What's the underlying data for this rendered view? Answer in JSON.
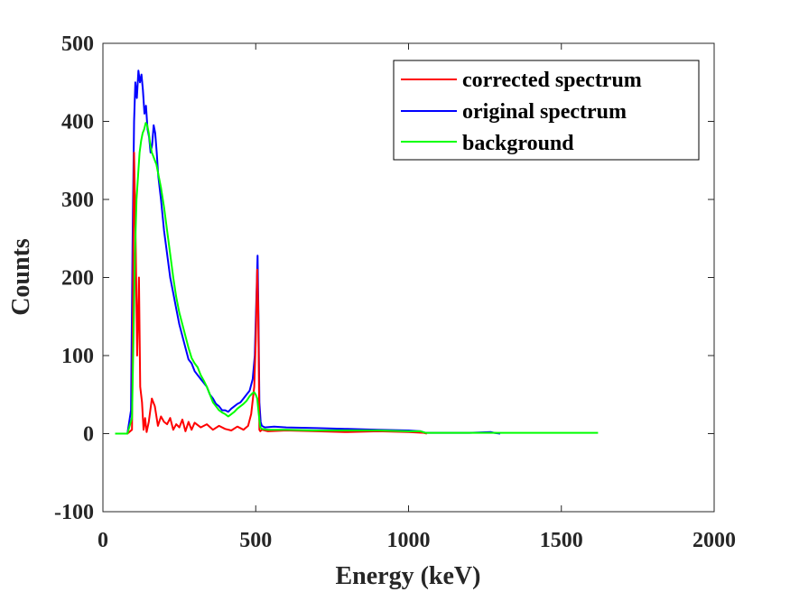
{
  "chart_data": {
    "type": "line",
    "title": "",
    "xlabel": "Energy (keV)",
    "ylabel": "Counts",
    "xlim": [
      0,
      2000
    ],
    "ylim": [
      -100,
      500
    ],
    "xticks": [
      0,
      500,
      1000,
      1500,
      2000
    ],
    "yticks": [
      -100,
      0,
      100,
      200,
      300,
      400,
      500
    ],
    "xtick_labels": [
      "0",
      "500",
      "1000",
      "1500",
      "2000"
    ],
    "ytick_labels": [
      "-100",
      "0",
      "100",
      "200",
      "300",
      "400",
      "500"
    ],
    "grid": false,
    "legend_position": "top-right",
    "series": [
      {
        "name": "corrected spectrum",
        "color": "#ff0000",
        "x": [
          40,
          80,
          95,
          102,
          107,
          112,
          118,
          122,
          128,
          133,
          138,
          143,
          150,
          160,
          170,
          180,
          190,
          200,
          210,
          220,
          230,
          240,
          250,
          260,
          270,
          280,
          290,
          300,
          320,
          340,
          360,
          380,
          400,
          420,
          440,
          460,
          475,
          485,
          495,
          500,
          505,
          508,
          512,
          515,
          520,
          540,
          600,
          700,
          800,
          900,
          1000,
          1050,
          1060
        ],
        "y": [
          0,
          0,
          5,
          360,
          250,
          100,
          200,
          60,
          40,
          5,
          20,
          2,
          15,
          45,
          35,
          10,
          22,
          15,
          12,
          20,
          5,
          12,
          8,
          18,
          3,
          15,
          5,
          14,
          8,
          12,
          5,
          10,
          6,
          4,
          9,
          5,
          10,
          25,
          60,
          120,
          210,
          160,
          5,
          3,
          5,
          3,
          4,
          3,
          2,
          3,
          2,
          1,
          0
        ]
      },
      {
        "name": "original spectrum",
        "color": "#0000ff",
        "x": [
          40,
          80,
          92,
          97,
          102,
          106,
          111,
          116,
          121,
          126,
          131,
          136,
          141,
          146,
          151,
          156,
          161,
          166,
          171,
          176,
          181,
          190,
          200,
          210,
          220,
          230,
          240,
          250,
          260,
          270,
          280,
          290,
          300,
          310,
          320,
          330,
          340,
          350,
          360,
          370,
          380,
          390,
          400,
          410,
          420,
          430,
          440,
          450,
          460,
          470,
          480,
          490,
          497,
          502,
          506,
          509,
          512,
          516,
          520,
          530,
          560,
          600,
          700,
          800,
          900,
          1000,
          1040,
          1055,
          1100,
          1200,
          1270,
          1280,
          1300
        ],
        "y": [
          0,
          0,
          30,
          240,
          400,
          450,
          430,
          465,
          450,
          460,
          440,
          410,
          420,
          390,
          380,
          360,
          370,
          395,
          385,
          360,
          330,
          300,
          260,
          230,
          200,
          180,
          160,
          140,
          125,
          110,
          95,
          90,
          80,
          75,
          70,
          65,
          60,
          50,
          45,
          38,
          35,
          30,
          30,
          28,
          32,
          35,
          38,
          40,
          45,
          50,
          55,
          70,
          100,
          170,
          228,
          150,
          40,
          15,
          10,
          8,
          9,
          8,
          7,
          6,
          5,
          4,
          3,
          1,
          1,
          1,
          2,
          1,
          0
        ]
      },
      {
        "name": "background",
        "color": "#00ff00",
        "x": [
          40,
          80,
          95,
          100,
          105,
          110,
          115,
          120,
          125,
          130,
          135,
          140,
          145,
          150,
          155,
          160,
          165,
          170,
          175,
          180,
          190,
          200,
          210,
          220,
          230,
          240,
          250,
          260,
          270,
          280,
          290,
          300,
          310,
          320,
          330,
          340,
          350,
          360,
          370,
          380,
          390,
          400,
          410,
          420,
          430,
          440,
          450,
          460,
          470,
          480,
          490,
          495,
          500,
          505,
          510,
          515,
          520,
          540,
          600,
          700,
          800,
          900,
          1000,
          1040,
          1055,
          1100,
          1200,
          1300,
          1400,
          1500,
          1620
        ],
        "y": [
          0,
          0,
          20,
          120,
          230,
          300,
          330,
          360,
          375,
          385,
          390,
          398,
          395,
          385,
          370,
          360,
          355,
          350,
          345,
          335,
          315,
          290,
          260,
          230,
          200,
          175,
          155,
          140,
          125,
          110,
          97,
          90,
          85,
          75,
          68,
          60,
          50,
          40,
          35,
          30,
          27,
          25,
          22,
          25,
          28,
          32,
          35,
          38,
          42,
          48,
          52,
          53,
          50,
          45,
          25,
          8,
          6,
          5,
          5,
          4,
          4,
          4,
          3,
          3,
          1,
          1,
          1,
          1,
          1,
          1,
          1
        ]
      }
    ]
  }
}
